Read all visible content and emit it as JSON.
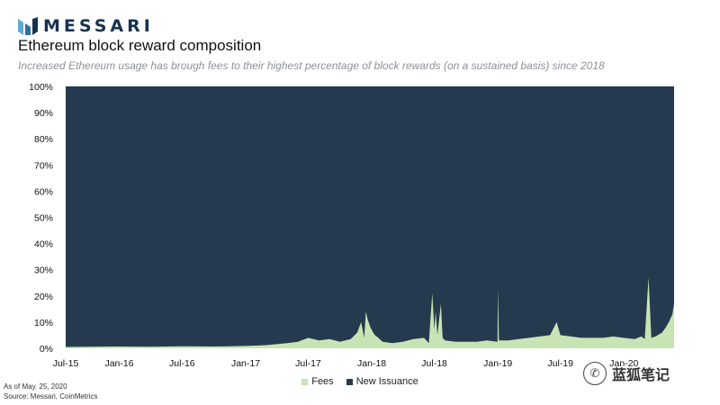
{
  "header": {
    "logo_text": "MESSARI",
    "title": "Ethereum block reward composition",
    "subtitle": "Increased Ethereum usage has brough fees to their highest percentage of block rewards (on a sustained basis) since 2018"
  },
  "footer": {
    "as_of": "As of May. 25, 2020",
    "source": "Source: Messari, CoinMetrics"
  },
  "watermark": {
    "icon": "wechat-icon",
    "text": "蓝狐笔记"
  },
  "colors": {
    "new_issuance": "#263a4f",
    "fees": "#c9e4b4",
    "logo": "#16324f"
  },
  "chart_data": {
    "type": "area",
    "stacked": true,
    "x_ticks": [
      "Jul-15",
      "Jan-16",
      "Jul-16",
      "Jan-17",
      "Jul-17",
      "Jan-18",
      "Jul-18",
      "Jan-19",
      "Jul-19",
      "Jan-20"
    ],
    "y_ticks": [
      "0%",
      "10%",
      "20%",
      "30%",
      "40%",
      "50%",
      "60%",
      "70%",
      "80%",
      "90%",
      "100%"
    ],
    "ylim": [
      0,
      100
    ],
    "xlim": [
      "2015-07-30",
      "2020-05-25"
    ],
    "legend": {
      "position": "bottom",
      "entries": [
        "Fees",
        "New Issuance"
      ]
    },
    "series": [
      {
        "name": "Fees",
        "x": [
          "2015-07-30",
          "2015-10-01",
          "2016-01-01",
          "2016-04-01",
          "2016-07-01",
          "2016-10-01",
          "2017-01-01",
          "2017-03-01",
          "2017-05-01",
          "2017-06-01",
          "2017-07-01",
          "2017-08-01",
          "2017-09-01",
          "2017-10-01",
          "2017-11-01",
          "2017-11-20",
          "2017-12-01",
          "2017-12-10",
          "2017-12-15",
          "2017-12-20",
          "2017-12-28",
          "2018-01-05",
          "2018-01-10",
          "2018-01-20",
          "2018-02-01",
          "2018-03-01",
          "2018-04-01",
          "2018-05-01",
          "2018-06-01",
          "2018-06-15",
          "2018-06-25",
          "2018-07-01",
          "2018-07-05",
          "2018-07-10",
          "2018-07-20",
          "2018-07-25",
          "2018-08-01",
          "2018-09-01",
          "2018-10-01",
          "2018-11-01",
          "2018-12-01",
          "2018-12-31",
          "2019-01-01",
          "2019-01-04",
          "2019-02-01",
          "2019-03-01",
          "2019-04-01",
          "2019-05-01",
          "2019-06-01",
          "2019-06-20",
          "2019-07-01",
          "2019-08-01",
          "2019-09-01",
          "2019-10-01",
          "2019-11-01",
          "2019-12-01",
          "2020-01-01",
          "2020-02-01",
          "2020-02-20",
          "2020-03-01",
          "2020-03-12",
          "2020-03-20",
          "2020-04-01",
          "2020-04-20",
          "2020-05-01",
          "2020-05-10",
          "2020-05-20",
          "2020-05-25"
        ],
        "values": [
          0.5,
          0.6,
          0.7,
          0.6,
          0.8,
          0.7,
          0.9,
          1.2,
          2,
          2.5,
          4,
          3,
          3.5,
          2.5,
          3.5,
          6,
          10,
          4,
          14,
          11,
          8,
          6,
          5,
          4,
          2.5,
          2,
          2.5,
          3.5,
          4,
          2,
          21,
          7,
          14,
          5,
          17,
          4,
          3,
          2.5,
          2.5,
          2.5,
          3,
          2.5,
          23,
          3,
          3,
          3.5,
          4,
          4.5,
          5,
          10,
          5,
          4.5,
          4,
          4,
          4,
          4.5,
          4,
          3.5,
          4.5,
          3.5,
          27,
          4,
          4.5,
          6,
          8,
          10,
          13,
          17
        ]
      },
      {
        "name": "New Issuance",
        "note_complement": true
      }
    ]
  }
}
